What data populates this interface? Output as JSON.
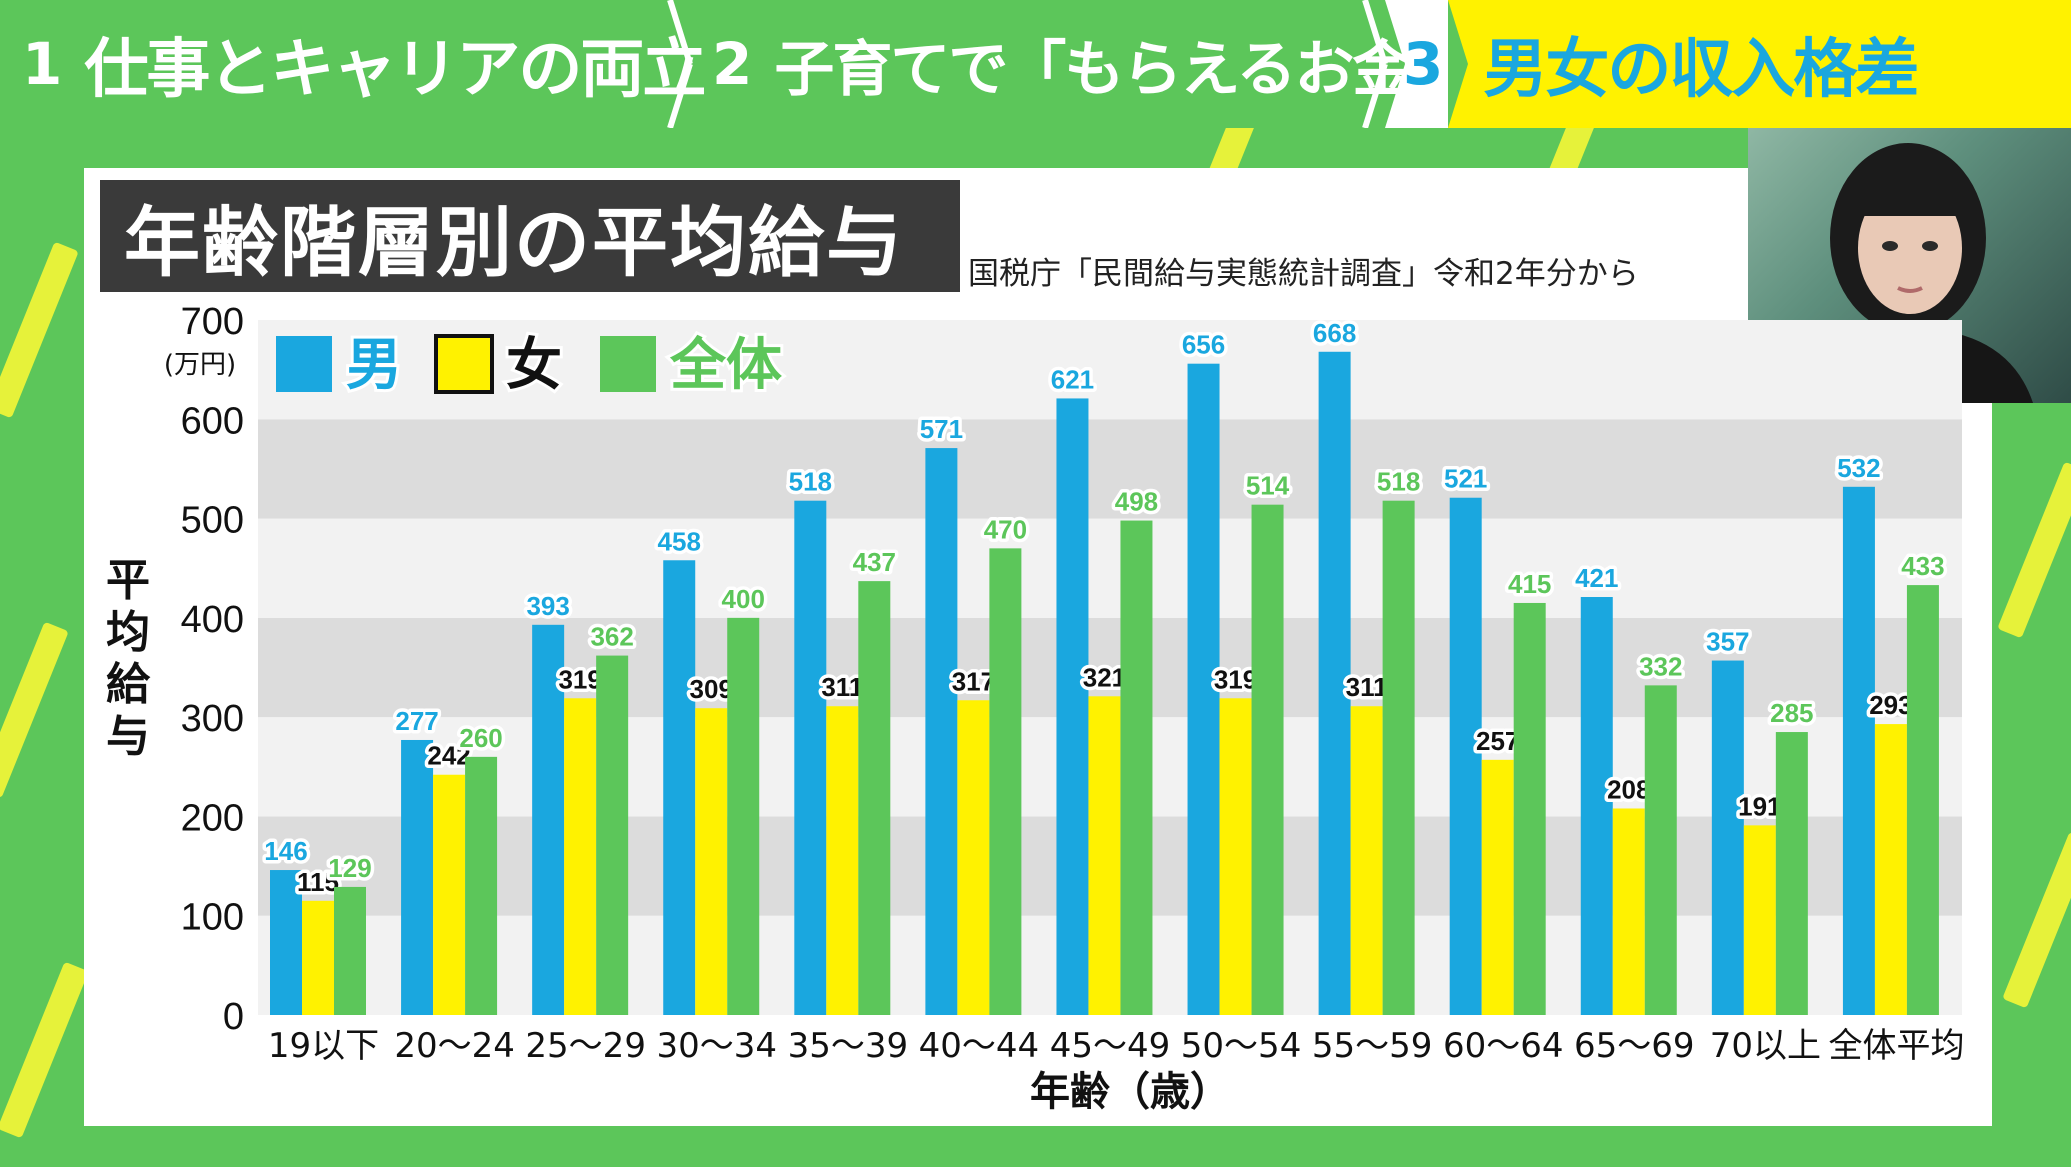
{
  "tabs": [
    {
      "num": "1",
      "label": "仕事とキャリアの両立"
    },
    {
      "num": "2",
      "label": "子育てで「もらえるお金」"
    },
    {
      "num": "3",
      "label": "男女の収入格差"
    }
  ],
  "title": "年齢階層別の平均給与",
  "source": "国税庁「民間給与実態統計調査」令和2年分から",
  "colors": {
    "male": "#1aa7df",
    "female": "#fff200",
    "all": "#5cc65a",
    "tab_green": "#5cc65a",
    "tab_yellow": "#fff200"
  },
  "chart_data": {
    "type": "bar",
    "ylabel": "平均給与",
    "yunit": "(万円)",
    "xlabel": "年齢（歳）",
    "ylim": [
      0,
      700
    ],
    "yticks": [
      0,
      100,
      200,
      300,
      400,
      500,
      600,
      700
    ],
    "categories": [
      "19以下",
      "20～24",
      "25～29",
      "30～34",
      "35～39",
      "40～44",
      "45～49",
      "50～54",
      "55～59",
      "60～64",
      "65～69",
      "70以上",
      "全体平均"
    ],
    "series": [
      {
        "name": "男",
        "values": [
          146,
          277,
          393,
          458,
          518,
          571,
          621,
          656,
          668,
          521,
          421,
          357,
          532
        ]
      },
      {
        "name": "女",
        "values": [
          115,
          242,
          319,
          309,
          311,
          317,
          321,
          319,
          311,
          257,
          208,
          191,
          293
        ]
      },
      {
        "name": "全体",
        "values": [
          129,
          260,
          362,
          400,
          437,
          470,
          498,
          514,
          518,
          415,
          332,
          285,
          433
        ]
      }
    ],
    "legend": "top-left",
    "grid": true
  }
}
